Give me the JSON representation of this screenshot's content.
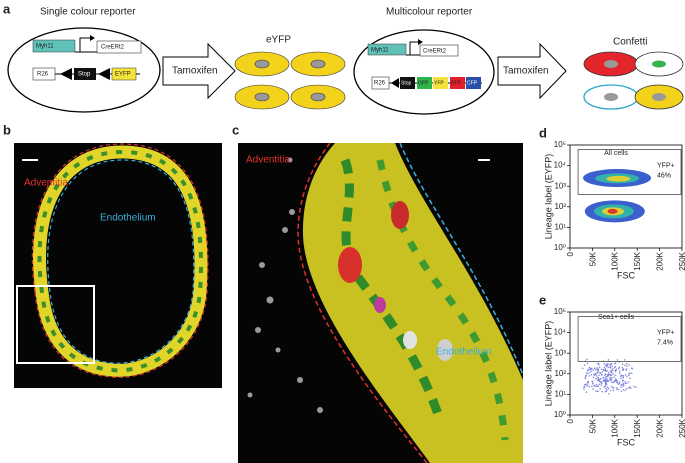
{
  "panels": {
    "a": {
      "label": "a",
      "single": {
        "title": "Single colour reporter",
        "promoter": "Myh11",
        "cre": "CreERt2",
        "locus": "R26",
        "stop": "Stop",
        "reporter": "EYFP",
        "arrow": "Tamoxifen",
        "result": "eYFP"
      },
      "multi": {
        "title": "Multicolour reporter",
        "promoter": "Myh11",
        "cre": "CreERt2",
        "locus": "R26",
        "stop": "Stop",
        "gfp": "GFP",
        "yfp": "YFP",
        "rfp": "RFP",
        "cfp": "CFP",
        "arrow": "Tamoxifen",
        "result": "Confetti"
      }
    },
    "b": {
      "label": "b",
      "adventitia": "Adventitia",
      "endothelium": "Endothelium"
    },
    "c": {
      "label": "c",
      "adventitia": "Adventitia",
      "endothelium": "Endothelium"
    }
  },
  "chart_data": [
    {
      "type": "flow",
      "panel_label": "d",
      "gate_title": "All cells",
      "series": [
        {
          "name": "YFP+",
          "values": [
            46
          ],
          "value_labels": [
            "46%"
          ]
        }
      ],
      "xlabel": "FSC",
      "ylabel": "Lineage label (EYFP)",
      "log_y": true,
      "xlim": [
        0,
        250000
      ],
      "xticks": [
        0,
        {
          "value": 50000,
          "label": "50K"
        },
        {
          "value": 100000,
          "label": "100K"
        },
        {
          "value": 150000,
          "label": "150K"
        },
        {
          "value": 200000,
          "label": "200K"
        },
        {
          "value": 250000,
          "label": "250K"
        }
      ],
      "ylim": [
        1,
        100000
      ],
      "yticks": [
        {
          "value": 1,
          "label": "10⁰"
        },
        {
          "value": 10,
          "label": "10¹"
        },
        {
          "value": 100,
          "label": "10²"
        },
        {
          "value": 1000,
          "label": "10³"
        },
        {
          "value": 10000,
          "label": "10⁴"
        },
        {
          "value": 100000,
          "label": "10⁵"
        }
      ]
    },
    {
      "type": "flow",
      "panel_label": "e",
      "gate_title": "Sca1+ cells",
      "series": [
        {
          "name": "YFP+",
          "values": [
            7.4
          ],
          "value_labels": [
            "7.4%"
          ]
        }
      ],
      "xlabel": "FSC",
      "ylabel": "Lineage label (EYFP)",
      "log_y": true,
      "xlim": [
        0,
        250000
      ],
      "xticks": [
        0,
        {
          "value": 50000,
          "label": "50K"
        },
        {
          "value": 100000,
          "label": "100K"
        },
        {
          "value": 150000,
          "label": "150K"
        },
        {
          "value": 200000,
          "label": "200K"
        },
        {
          "value": 250000,
          "label": "250K"
        }
      ],
      "ylim": [
        1,
        100000
      ],
      "yticks": [
        {
          "value": 1,
          "label": "10⁰"
        },
        {
          "value": 10,
          "label": "10¹"
        },
        {
          "value": 100,
          "label": "10²"
        },
        {
          "value": 1000,
          "label": "10³"
        },
        {
          "value": 10000,
          "label": "10⁴"
        },
        {
          "value": 100000,
          "label": "10⁵"
        }
      ]
    }
  ]
}
